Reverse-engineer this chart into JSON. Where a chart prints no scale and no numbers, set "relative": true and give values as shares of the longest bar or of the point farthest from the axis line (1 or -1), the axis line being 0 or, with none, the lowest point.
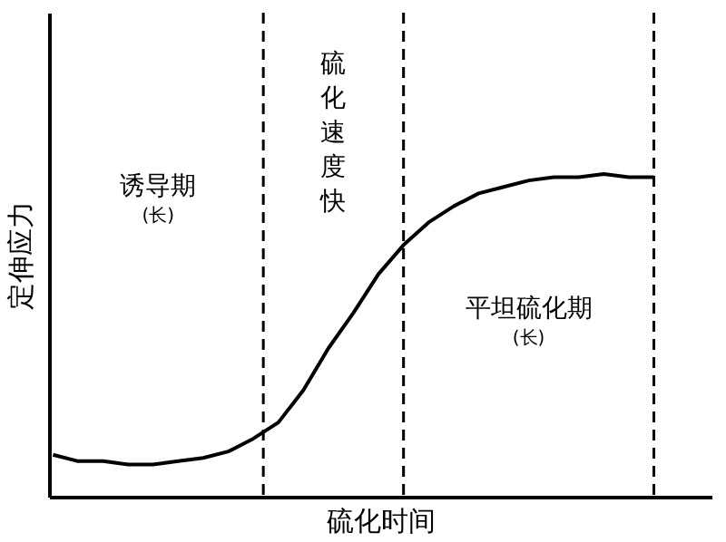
{
  "chart_data": {
    "type": "line",
    "relative": true,
    "xlabel": "硫化时间",
    "ylabel": "定伸应力",
    "categories": [
      null,
      null,
      null,
      null,
      null,
      null,
      null,
      null,
      null,
      null,
      null,
      null,
      null,
      null,
      null,
      null,
      null,
      null,
      null,
      null,
      null,
      null,
      null,
      null,
      null
    ],
    "series": [
      {
        "color": "#000000",
        "values": [
          0.13,
          0.11,
          0.11,
          0.1,
          0.1,
          0.11,
          0.12,
          0.14,
          0.18,
          0.23,
          0.33,
          0.46,
          0.57,
          0.69,
          0.78,
          0.85,
          0.9,
          0.94,
          0.96,
          0.98,
          0.99,
          0.99,
          1,
          0.99,
          0.99
        ]
      }
    ],
    "annotations": [
      "诱导期",
      "(长)",
      "硫化速度快",
      "平坦硫化期",
      "(长)"
    ],
    "grid": false,
    "marker": "none",
    "line_style": "solid"
  }
}
